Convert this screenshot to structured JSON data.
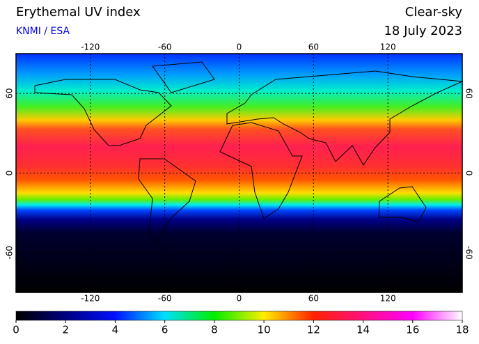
{
  "header": {
    "title": "Erythemal UV index",
    "source": "KNMI / ESA",
    "condition": "Clear-sky",
    "date": "18 July 2023"
  },
  "map": {
    "lonlim": [
      -180,
      180
    ],
    "latlim": [
      -90,
      90
    ],
    "lonticks": [
      -120,
      -60,
      0,
      60,
      120
    ],
    "latticks": [
      60,
      0,
      -60
    ],
    "grid": true
  },
  "colorbar": {
    "lim": [
      0,
      18
    ],
    "ticks": [
      0,
      2,
      4,
      6,
      8,
      10,
      12,
      14,
      16,
      18
    ]
  }
}
